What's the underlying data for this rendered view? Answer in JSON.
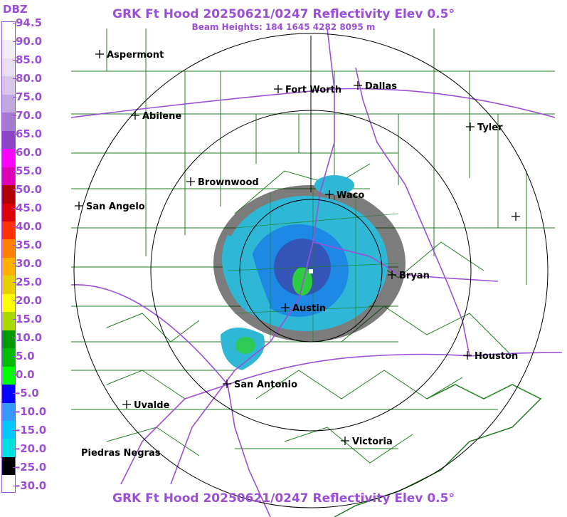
{
  "title": "GRK Ft Hood 20250621/0247 Reflectivity Elev 0.5°",
  "beam_heights": "Beam Heights: 184 1645 4282 8095 m",
  "legend": {
    "unit": "DBZ",
    "ticks": [
      "94.5",
      "90.0",
      "85.0",
      "80.0",
      "75.0",
      "70.0",
      "65.0",
      "60.0",
      "55.0",
      "50.0",
      "45.0",
      "40.0",
      "35.0",
      "30.0",
      "25.0",
      "20.0",
      "15.0",
      "10.0",
      "5.0",
      "0.0",
      "-5.0",
      "-10.0",
      "-15.0",
      "-20.0",
      "-25.0",
      "-30.0"
    ],
    "colors": [
      "#ffffff",
      "#f2eef8",
      "#e8dff2",
      "#d7c6ea",
      "#c2a8e0",
      "#a579d0",
      "#8e44c8",
      "#ff00ff",
      "#e000b8",
      "#b00000",
      "#dd0000",
      "#ff3300",
      "#ff7f00",
      "#ffb000",
      "#e8d000",
      "#ffff00",
      "#a8d800",
      "#009900",
      "#00bb00",
      "#00ff00",
      "#0000ff",
      "#3399ff",
      "#00c8ff",
      "#00e0e0",
      "#000000",
      "#ffffff"
    ]
  },
  "cities": [
    {
      "name": "Aspermont"
    },
    {
      "name": "Fort Worth"
    },
    {
      "name": "Dallas"
    },
    {
      "name": "Abilene"
    },
    {
      "name": "Tyler"
    },
    {
      "name": "Brownwood"
    },
    {
      "name": "Waco"
    },
    {
      "name": "San Angelo"
    },
    {
      "name": "Bryan"
    },
    {
      "name": "Austin"
    },
    {
      "name": "Houston"
    },
    {
      "name": "San Antonio"
    },
    {
      "name": "Uvalde"
    },
    {
      "name": "Victoria"
    },
    {
      "name": "Piedras Negras"
    }
  ],
  "colors": {
    "title": "#9b4fd6",
    "highway": "#9b4fd6",
    "county": "#1f7f1f",
    "range_ring": "#000000"
  }
}
